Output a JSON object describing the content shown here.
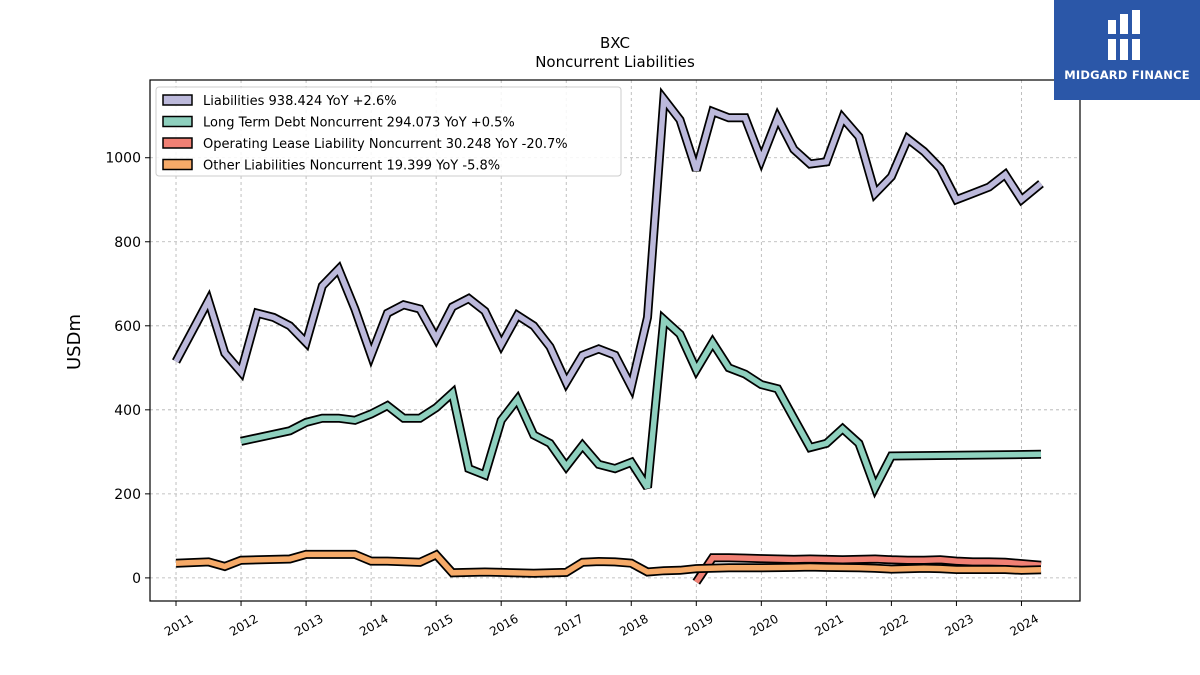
{
  "brand": {
    "name": "MIDGARD FINANCE",
    "bg_color": "#2b57a8",
    "logo_icon": "midgard-logo-icon"
  },
  "chart_data": {
    "type": "line",
    "title": "BXC",
    "subtitle": "Noncurrent  Liabilities",
    "ylabel": "USDm",
    "xlabel": "",
    "xlim": [
      2010.6,
      2024.9
    ],
    "ylim": [
      -55,
      1185
    ],
    "x_ticks": [
      "2011",
      "2012",
      "2013",
      "2014",
      "2015",
      "2016",
      "2017",
      "2018",
      "2019",
      "2020",
      "2021",
      "2022",
      "2023",
      "2024"
    ],
    "y_ticks": [
      0,
      200,
      400,
      600,
      800,
      1000
    ],
    "grid": true,
    "legend_position": "top-left",
    "series": [
      {
        "name": "Liabilities",
        "legend": "Liabilities  938.424 YoY +2.6%",
        "color": "#bcb9db",
        "points": [
          [
            2011.0,
            515
          ],
          [
            2011.5,
            660
          ],
          [
            2011.75,
            535
          ],
          [
            2012.0,
            490
          ],
          [
            2012.25,
            630
          ],
          [
            2012.5,
            620
          ],
          [
            2012.75,
            600
          ],
          [
            2013.0,
            560
          ],
          [
            2013.25,
            695
          ],
          [
            2013.5,
            735
          ],
          [
            2013.75,
            640
          ],
          [
            2014.0,
            530
          ],
          [
            2014.25,
            630
          ],
          [
            2014.5,
            650
          ],
          [
            2014.75,
            640
          ],
          [
            2015.0,
            570
          ],
          [
            2015.25,
            645
          ],
          [
            2015.5,
            665
          ],
          [
            2015.75,
            635
          ],
          [
            2016.0,
            555
          ],
          [
            2016.25,
            625
          ],
          [
            2016.5,
            600
          ],
          [
            2016.75,
            550
          ],
          [
            2017.0,
            465
          ],
          [
            2017.25,
            530
          ],
          [
            2017.5,
            545
          ],
          [
            2017.75,
            530
          ],
          [
            2018.0,
            455
          ],
          [
            2018.25,
            620
          ],
          [
            2018.5,
            1140
          ],
          [
            2018.75,
            1090
          ],
          [
            2019.0,
            970
          ],
          [
            2019.25,
            1110
          ],
          [
            2019.5,
            1095
          ],
          [
            2019.75,
            1095
          ],
          [
            2020.0,
            995
          ],
          [
            2020.25,
            1095
          ],
          [
            2020.5,
            1020
          ],
          [
            2020.75,
            985
          ],
          [
            2021.0,
            990
          ],
          [
            2021.25,
            1095
          ],
          [
            2021.5,
            1050
          ],
          [
            2021.75,
            915
          ],
          [
            2022.0,
            955
          ],
          [
            2022.25,
            1045
          ],
          [
            2022.5,
            1015
          ],
          [
            2022.75,
            975
          ],
          [
            2023.0,
            900
          ],
          [
            2023.25,
            915
          ],
          [
            2023.5,
            930
          ],
          [
            2023.75,
            960
          ],
          [
            2024.0,
            900
          ],
          [
            2024.3,
            938.424
          ]
        ]
      },
      {
        "name": "Long Term Debt Noncurrent",
        "legend": "Long Term Debt Noncurrent  294.073 YoY +0.5%",
        "color": "#8ed0be",
        "points": [
          [
            2012.0,
            325
          ],
          [
            2012.75,
            350
          ],
          [
            2013.0,
            370
          ],
          [
            2013.25,
            380
          ],
          [
            2013.5,
            380
          ],
          [
            2013.75,
            375
          ],
          [
            2014.0,
            390
          ],
          [
            2014.25,
            410
          ],
          [
            2014.5,
            380
          ],
          [
            2014.75,
            380
          ],
          [
            2015.0,
            405
          ],
          [
            2015.25,
            440
          ],
          [
            2015.5,
            260
          ],
          [
            2015.75,
            245
          ],
          [
            2016.0,
            375
          ],
          [
            2016.25,
            425
          ],
          [
            2016.5,
            340
          ],
          [
            2016.75,
            320
          ],
          [
            2017.0,
            265
          ],
          [
            2017.25,
            315
          ],
          [
            2017.5,
            270
          ],
          [
            2017.75,
            260
          ],
          [
            2018.0,
            275
          ],
          [
            2018.25,
            215
          ],
          [
            2018.5,
            615
          ],
          [
            2018.75,
            580
          ],
          [
            2019.0,
            495
          ],
          [
            2019.25,
            560
          ],
          [
            2019.5,
            500
          ],
          [
            2019.75,
            485
          ],
          [
            2020.0,
            460
          ],
          [
            2020.25,
            450
          ],
          [
            2020.5,
            380
          ],
          [
            2020.75,
            310
          ],
          [
            2021.0,
            320
          ],
          [
            2021.25,
            355
          ],
          [
            2021.5,
            320
          ],
          [
            2021.75,
            215
          ],
          [
            2022.0,
            290
          ],
          [
            2024.3,
            294.073
          ]
        ]
      },
      {
        "name": "Operating Lease Liability Noncurrent",
        "legend": "Operating Lease Liability Noncurrent  30.248 YoY -20.7%",
        "color": "#f08074",
        "points": [
          [
            2019.0,
            -10
          ],
          [
            2019.25,
            48
          ],
          [
            2019.5,
            48
          ],
          [
            2019.75,
            47
          ],
          [
            2020.0,
            46
          ],
          [
            2020.25,
            45
          ],
          [
            2020.5,
            44
          ],
          [
            2020.75,
            45
          ],
          [
            2021.0,
            44
          ],
          [
            2021.25,
            43
          ],
          [
            2021.5,
            44
          ],
          [
            2021.75,
            45
          ],
          [
            2022.0,
            43
          ],
          [
            2022.25,
            42
          ],
          [
            2022.5,
            42
          ],
          [
            2022.75,
            43
          ],
          [
            2023.0,
            40
          ],
          [
            2023.25,
            38
          ],
          [
            2023.5,
            38
          ],
          [
            2023.75,
            37
          ],
          [
            2024.0,
            34
          ],
          [
            2024.3,
            30.248
          ]
        ]
      },
      {
        "name": "Other Liabilities Noncurrent",
        "legend": "Other Liabilities Noncurrent  19.399 YoY -5.8%",
        "color": "#f6aa68",
        "points": [
          [
            2011.0,
            35
          ],
          [
            2011.5,
            38
          ],
          [
            2011.75,
            27
          ],
          [
            2012.0,
            42
          ],
          [
            2012.75,
            45
          ],
          [
            2013.0,
            56
          ],
          [
            2013.75,
            56
          ],
          [
            2014.0,
            40
          ],
          [
            2014.25,
            40
          ],
          [
            2014.75,
            37
          ],
          [
            2015.0,
            55
          ],
          [
            2015.25,
            12
          ],
          [
            2015.5,
            13
          ],
          [
            2015.75,
            14
          ],
          [
            2016.0,
            13
          ],
          [
            2016.5,
            11
          ],
          [
            2017.0,
            13
          ],
          [
            2017.25,
            37
          ],
          [
            2017.5,
            39
          ],
          [
            2017.75,
            38
          ],
          [
            2018.0,
            35
          ],
          [
            2018.25,
            14
          ],
          [
            2018.5,
            17
          ],
          [
            2018.75,
            18
          ],
          [
            2019.0,
            22
          ],
          [
            2019.5,
            24
          ],
          [
            2020.0,
            24
          ],
          [
            2020.5,
            25
          ],
          [
            2020.75,
            26
          ],
          [
            2021.0,
            25
          ],
          [
            2021.5,
            24
          ],
          [
            2021.75,
            23
          ],
          [
            2022.0,
            21
          ],
          [
            2022.5,
            23
          ],
          [
            2022.75,
            22
          ],
          [
            2023.0,
            20
          ],
          [
            2023.5,
            20
          ],
          [
            2023.75,
            20
          ],
          [
            2024.0,
            18
          ],
          [
            2024.3,
            19.399
          ]
        ]
      }
    ]
  }
}
